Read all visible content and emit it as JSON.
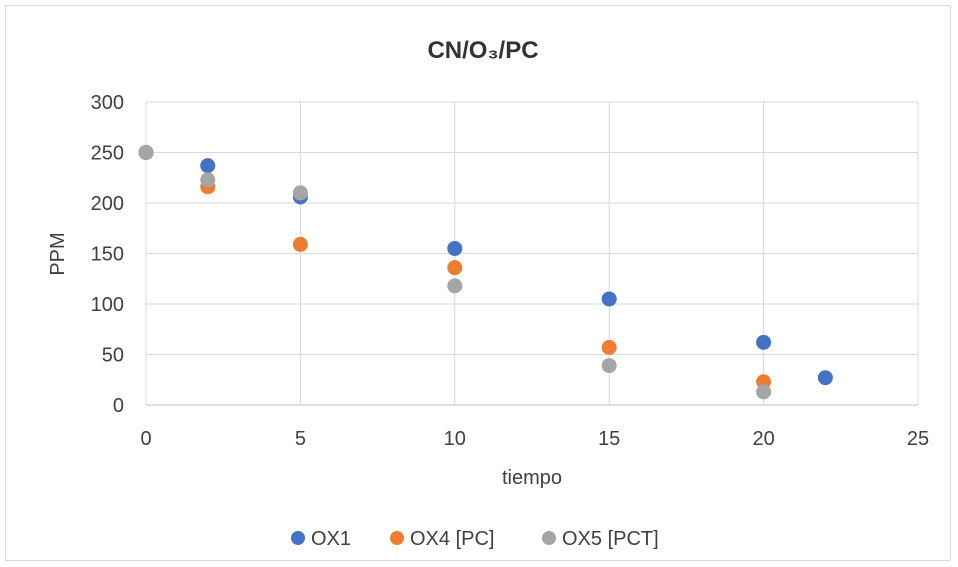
{
  "chart_data": {
    "type": "scatter",
    "title": "CN/O₃/PC",
    "xlabel": "tiempo",
    "ylabel": "PPM",
    "xlim": [
      0,
      25
    ],
    "ylim": [
      0,
      300
    ],
    "x_ticks": [
      "0",
      "5",
      "10",
      "15",
      "20",
      "25"
    ],
    "y_ticks": [
      "0",
      "50",
      "100",
      "150",
      "200",
      "250",
      "300"
    ],
    "grid": true,
    "legend_position": "bottom",
    "series": [
      {
        "name": "OX1",
        "color": "#4472c4",
        "points": [
          [
            0,
            250
          ],
          [
            2,
            237
          ],
          [
            5,
            206
          ],
          [
            10,
            155
          ],
          [
            15,
            105
          ],
          [
            20,
            62
          ],
          [
            22,
            27
          ]
        ]
      },
      {
        "name": "OX4 [PC]",
        "color": "#ed7d31",
        "points": [
          [
            0,
            250
          ],
          [
            2,
            216
          ],
          [
            5,
            159
          ],
          [
            10,
            136
          ],
          [
            15,
            57
          ],
          [
            20,
            23
          ]
        ]
      },
      {
        "name": "OX5 [PCT]",
        "color": "#a5a5a5",
        "points": [
          [
            0,
            250
          ],
          [
            2,
            223
          ],
          [
            5,
            210
          ],
          [
            10,
            118
          ],
          [
            15,
            39
          ],
          [
            20,
            13
          ]
        ]
      }
    ]
  }
}
